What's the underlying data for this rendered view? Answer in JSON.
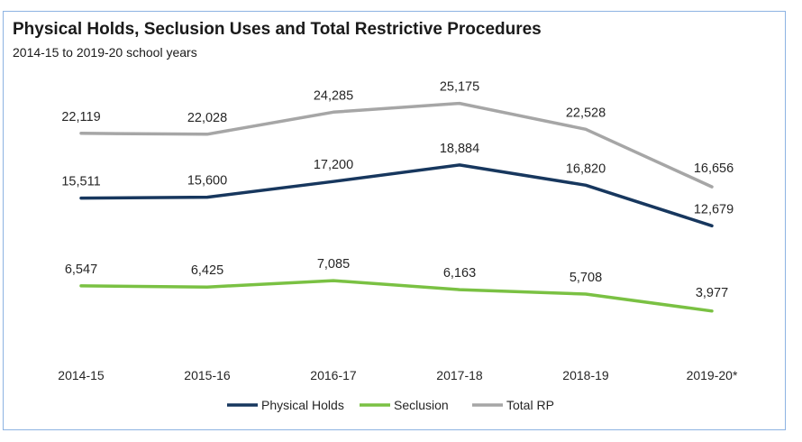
{
  "chart_data": {
    "type": "line",
    "title": "Physical Holds, Seclusion Uses and Total Restrictive Procedures",
    "subtitle": "2014-15 to 2019-20 school years",
    "xlabel": "",
    "ylabel": "",
    "categories": [
      "2014-15",
      "2015-16",
      "2016-17",
      "2017-18",
      "2018-19",
      "2019-20*"
    ],
    "ylim": [
      0,
      30000
    ],
    "grid": false,
    "legend_position": "bottom",
    "series": [
      {
        "name": "Physical Holds",
        "color": "#17375e",
        "values": [
          15511,
          15600,
          17200,
          18884,
          16820,
          12679
        ],
        "labels": [
          "15,511",
          "15,600",
          "17,200",
          "18,884",
          "16,820",
          "12,679"
        ]
      },
      {
        "name": "Seclusion",
        "color": "#7ac143",
        "values": [
          6547,
          6425,
          7085,
          6163,
          5708,
          3977
        ],
        "labels": [
          "6,547",
          "6,425",
          "7,085",
          "6,163",
          "5,708",
          "3,977"
        ]
      },
      {
        "name": "Total RP",
        "color": "#a6a6a6",
        "values": [
          22119,
          22028,
          24285,
          25175,
          22528,
          16656
        ],
        "labels": [
          "22,119",
          "22,028",
          "24,285",
          "25,175",
          "22,528",
          "16,656"
        ]
      }
    ]
  }
}
